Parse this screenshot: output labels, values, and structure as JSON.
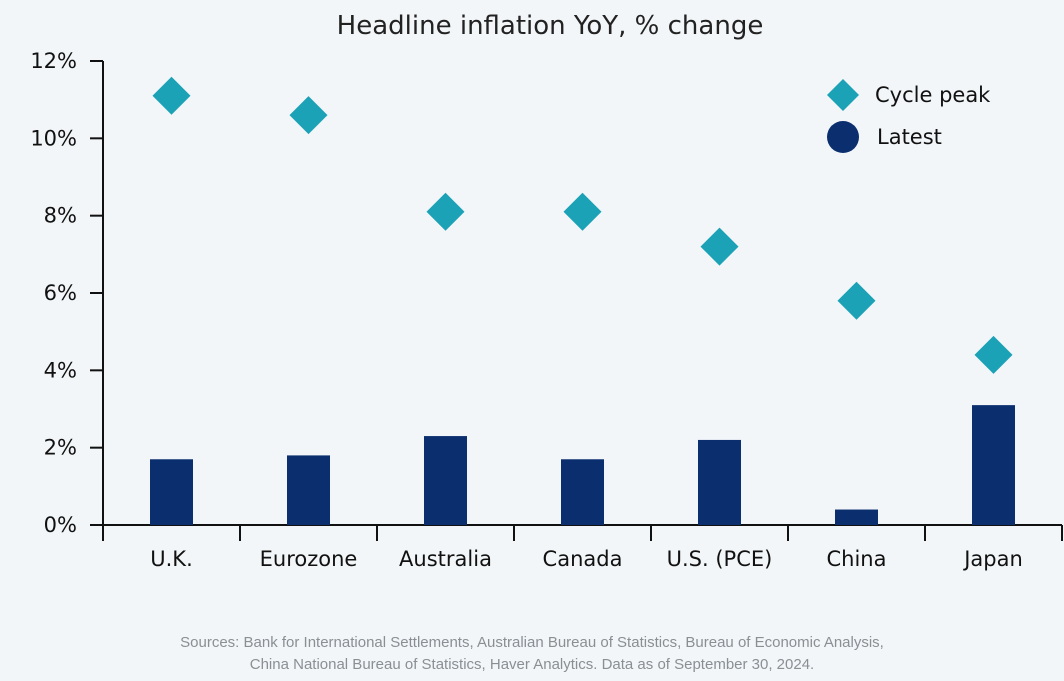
{
  "chart_data": {
    "type": "bar",
    "title": "Headline inflation YoY, % change",
    "categories": [
      "U.K.",
      "Eurozone",
      "Australia",
      "Canada",
      "U.S. (PCE)",
      "China",
      "Japan"
    ],
    "series": [
      {
        "name": "Cycle peak",
        "kind": "marker",
        "marker": "diamond",
        "color": "#1ba2b6",
        "values": [
          11.1,
          10.6,
          8.1,
          8.1,
          7.2,
          5.8,
          4.4
        ]
      },
      {
        "name": "Latest",
        "kind": "bar",
        "marker": "circle",
        "color": "#0b2e6e",
        "values": [
          1.7,
          1.8,
          2.3,
          1.7,
          2.2,
          0.4,
          3.1
        ]
      }
    ],
    "yticks": [
      0,
      2,
      4,
      6,
      8,
      10,
      12
    ],
    "ytick_labels": [
      "0%",
      "2%",
      "4%",
      "6%",
      "8%",
      "10%",
      "12%"
    ],
    "ylim": [
      0,
      12
    ],
    "xlabel": "",
    "ylabel": "",
    "grid": false,
    "legend_position": "top-right"
  },
  "sources": {
    "line1": "Sources: Bank for International Settlements, Australian Bureau of Statistics, Bureau of Economic Analysis,",
    "line2": "China National Bureau of Statistics, Haver Analytics. Data as of September 30, 2024."
  }
}
